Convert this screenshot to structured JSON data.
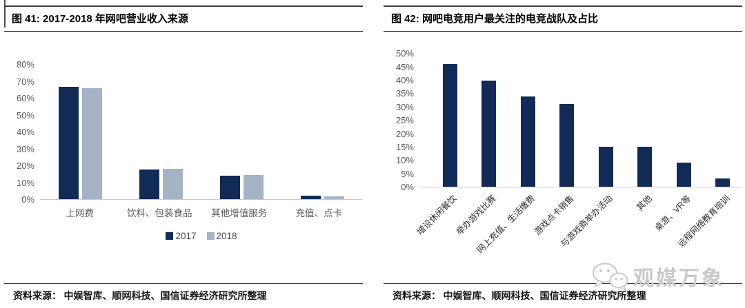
{
  "chart_data": [
    {
      "type": "bar",
      "title": "图 41:  2017-2018 年网吧营业收入来源",
      "categories": [
        "上网费",
        "饮料、包装食品",
        "其他增值服务",
        "充值、点卡"
      ],
      "series": [
        {
          "name": "2017",
          "color": "#122b56",
          "values": [
            67,
            17.5,
            14,
            2
          ]
        },
        {
          "name": "2018",
          "color": "#a6b3c4",
          "values": [
            66,
            18,
            14.5,
            1.5
          ]
        }
      ],
      "xlabel": "",
      "ylabel": "",
      "ylim": [
        0,
        80
      ],
      "ytick_step": 10,
      "ytick_format": "percent",
      "grid": false,
      "legend_position": "bottom",
      "source": "资料来源： 中娱智库、顺网科技、国信证券经济研究所整理"
    },
    {
      "type": "bar",
      "title": "图 42:  网吧电竞用户最关注的电竞战队及占比",
      "categories": [
        "增设休闲餐饮",
        "举办游戏比赛",
        "网上充值、生活缴费",
        "游戏点卡销售",
        "与游戏商举办活动",
        "其他",
        "桌游、VR等",
        "远程网络教育培训"
      ],
      "series": [
        {
          "name": "占比",
          "color": "#122b56",
          "values": [
            46,
            40,
            34,
            31,
            15,
            15,
            9,
            3
          ]
        }
      ],
      "xlabel": "",
      "ylabel": "",
      "ylim": [
        0,
        50
      ],
      "ytick_step": 5,
      "ytick_format": "percent",
      "grid": false,
      "x_label_rotation": -45,
      "legend_position": "none",
      "source": "资料来源： 中娱智库、顺网科技、国信证券经济研究所整理"
    }
  ],
  "watermark": {
    "text": "观媒万象",
    "icon": "wechat-icon",
    "color": "#c9c9c9"
  }
}
